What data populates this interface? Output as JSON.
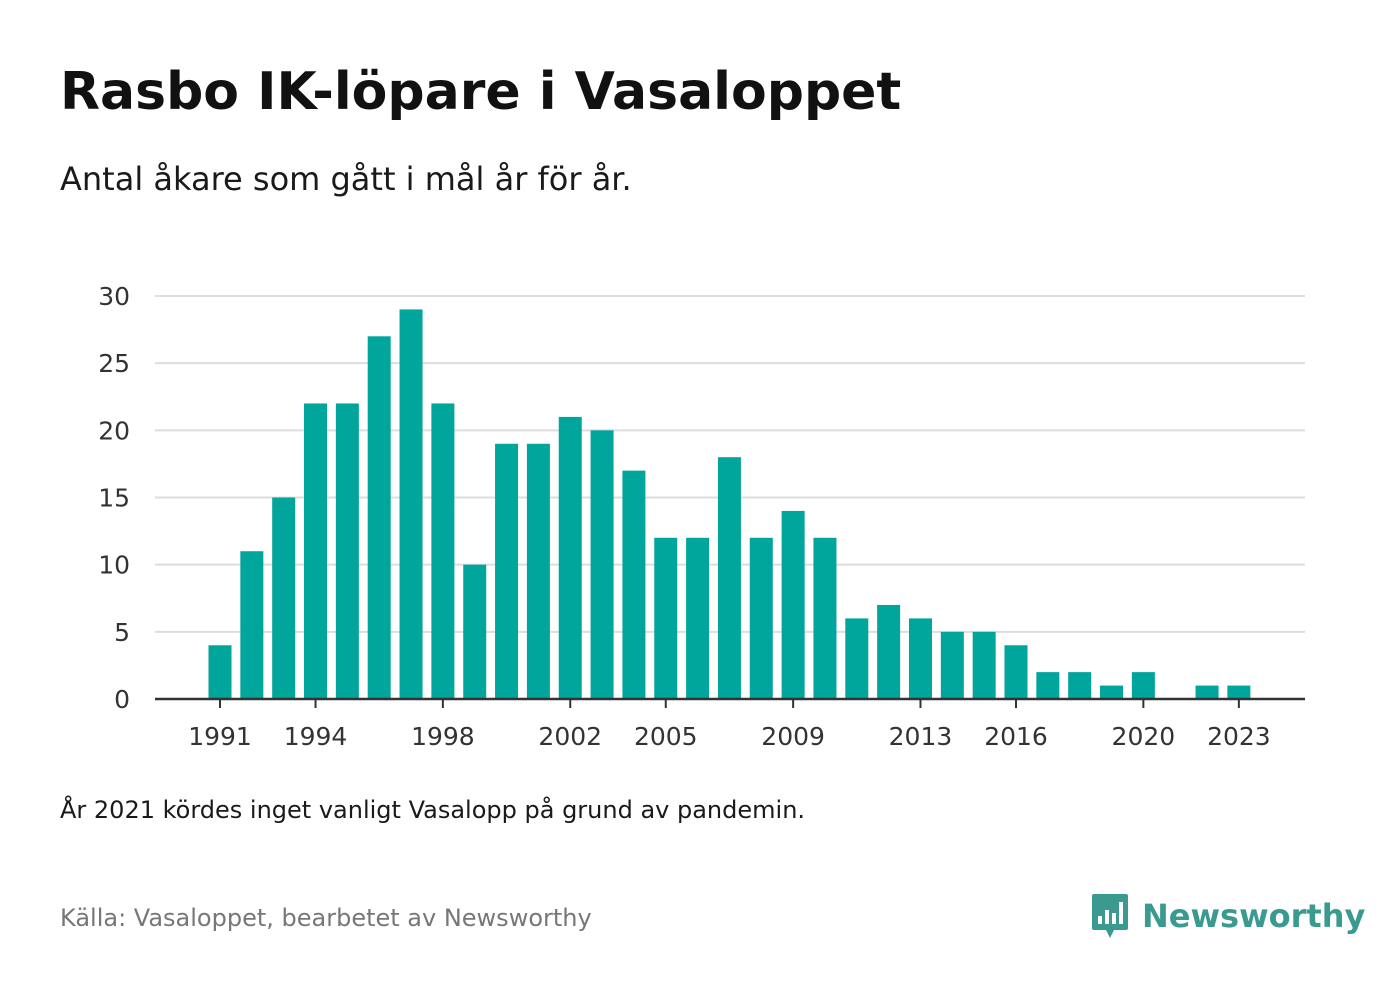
{
  "header": {
    "title": "Rasbo IK-löpare i Vasaloppet",
    "subtitle": "Antal åkare som gått i mål år för år."
  },
  "footer": {
    "note": "År 2021 kördes inget vanligt Vasalopp på grund av pandemin.",
    "source": "Källa: Vasaloppet, bearbetet av Newsworthy",
    "brand": "Newsworthy",
    "brand_icon": "bar-chart-speech-bubble-icon"
  },
  "colors": {
    "bar": "#00a59b",
    "grid": "#dddddd",
    "axis": "#333333",
    "brand": "#3a9a8f"
  },
  "chart_data": {
    "type": "bar",
    "title": "Rasbo IK-löpare i Vasaloppet",
    "subtitle": "Antal åkare som gått i mål år för år.",
    "xlabel": "",
    "ylabel": "",
    "ylim": [
      0,
      30
    ],
    "yticks": [
      0,
      5,
      10,
      15,
      20,
      25,
      30
    ],
    "xtick_labels": [
      "1991",
      "1994",
      "1998",
      "2002",
      "2005",
      "2009",
      "2013",
      "2016",
      "2020",
      "2023"
    ],
    "categories": [
      "1991",
      "1992",
      "1993",
      "1994",
      "1995",
      "1996",
      "1997",
      "1998",
      "1999",
      "2000",
      "2001",
      "2002",
      "2003",
      "2004",
      "2005",
      "2006",
      "2007",
      "2008",
      "2009",
      "2010",
      "2011",
      "2012",
      "2013",
      "2014",
      "2015",
      "2016",
      "2017",
      "2018",
      "2019",
      "2020",
      "2021",
      "2022",
      "2023"
    ],
    "values": [
      4,
      11,
      15,
      22,
      22,
      27,
      29,
      22,
      10,
      19,
      19,
      21,
      20,
      17,
      12,
      12,
      18,
      12,
      14,
      12,
      6,
      7,
      6,
      5,
      5,
      4,
      2,
      2,
      1,
      2,
      0,
      1,
      1
    ],
    "grid": true,
    "legend": "none"
  }
}
